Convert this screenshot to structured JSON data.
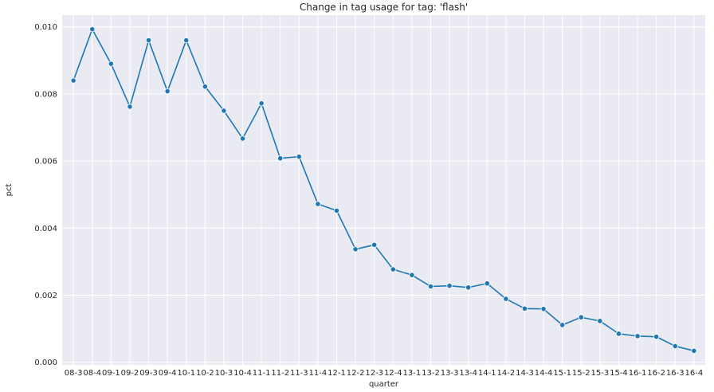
{
  "chart_data": {
    "type": "line",
    "title": "Change in tag usage for tag: 'flash'",
    "xlabel": "quarter",
    "ylabel": "pct",
    "categories": [
      "08-3",
      "08-4",
      "09-1",
      "09-2",
      "09-3",
      "09-4",
      "10-1",
      "10-2",
      "10-3",
      "10-4",
      "11-1",
      "11-2",
      "11-3",
      "11-4",
      "12-1",
      "12-2",
      "12-3",
      "12-4",
      "13-1",
      "13-2",
      "13-3",
      "13-4",
      "14-1",
      "14-2",
      "14-3",
      "14-4",
      "15-1",
      "15-2",
      "15-3",
      "15-4",
      "16-1",
      "16-2",
      "16-3",
      "16-4"
    ],
    "series": [
      {
        "values": [
          0.0084,
          0.00993,
          0.0089,
          0.00762,
          0.0096,
          0.00808,
          0.0096,
          0.00822,
          0.0075,
          0.00667,
          0.00772,
          0.00608,
          0.00613,
          0.00472,
          0.00452,
          0.00337,
          0.0035,
          0.00277,
          0.0026,
          0.00226,
          0.00228,
          0.00223,
          0.00235,
          0.00189,
          0.0016,
          0.00159,
          0.00111,
          0.00134,
          0.00123,
          0.00085,
          0.00078,
          0.00076,
          0.00048,
          0.00034
        ],
        "color": "#1f77b4"
      }
    ],
    "ylim": [
      -8e-05,
      0.01035
    ],
    "yticks": [
      0.0,
      0.002,
      0.004,
      0.006,
      0.008,
      0.01
    ],
    "ytick_labels": [
      "0.000",
      "0.002",
      "0.004",
      "0.006",
      "0.008",
      "0.010"
    ],
    "grid": true,
    "style": "seaborn-darkgrid",
    "background": "#eaeaf2",
    "grid_color": "#ffffff"
  }
}
